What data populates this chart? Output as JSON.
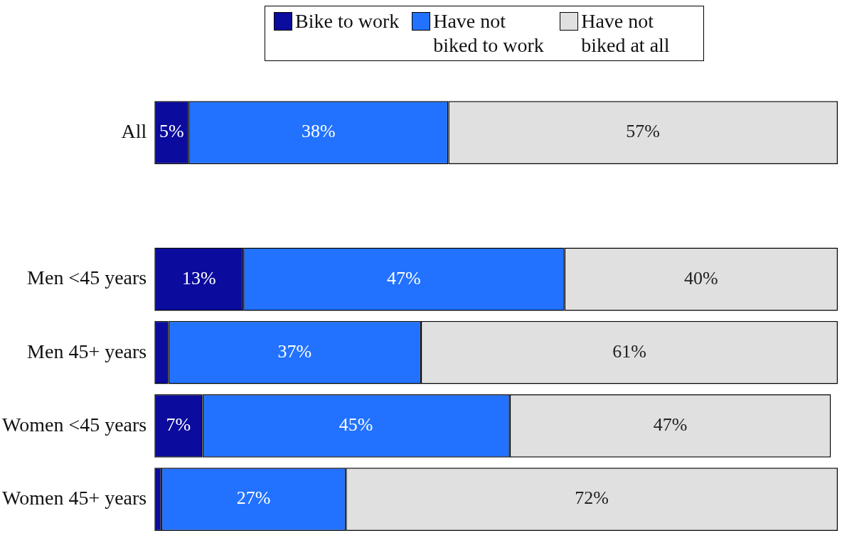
{
  "chart_data": {
    "type": "bar",
    "orientation": "horizontal",
    "stacked": true,
    "categories": [
      "All",
      null,
      "Men <45 years",
      "Men 45+ years",
      "Women <45 years",
      "Women 45+ years"
    ],
    "series": [
      {
        "name": "Bike to work",
        "color": "#0b0b9e",
        "values": [
          5,
          null,
          13,
          2,
          7,
          1
        ],
        "value_labels": [
          "5%",
          null,
          "13%",
          null,
          "7%",
          null
        ]
      },
      {
        "name": "Have not biked to work",
        "color": "#2272ff",
        "values": [
          38,
          null,
          47,
          37,
          45,
          27
        ],
        "value_labels": [
          "38%",
          null,
          "47%",
          "37%",
          "45%",
          "27%"
        ]
      },
      {
        "name": "Have not biked at all",
        "color": "#e0e0e0",
        "values": [
          57,
          null,
          40,
          61,
          47,
          72
        ],
        "value_labels": [
          "57%",
          null,
          "40%",
          "61%",
          "47%",
          "72%"
        ]
      }
    ],
    "xlim": [
      0,
      100
    ],
    "tick_labels": "y",
    "legend": "top"
  }
}
